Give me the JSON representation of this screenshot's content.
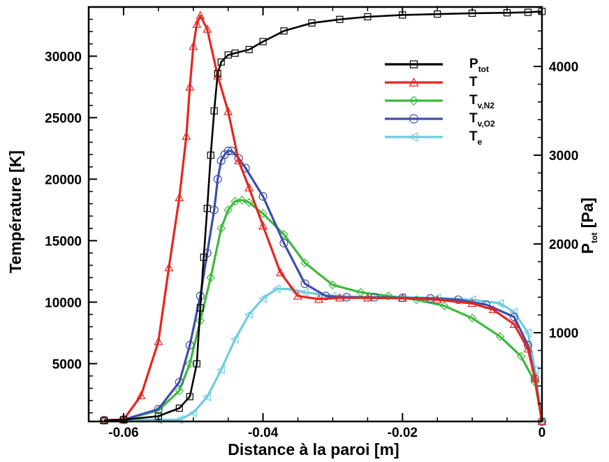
{
  "chart_data": {
    "type": "line",
    "xlabel": "Distance à la paroi [m]",
    "ylabel_left": "Température [K]",
    "ylabel_right": {
      "main": "P",
      "sub": "tot",
      "unit": " [Pa]"
    },
    "xlim": [
      -0.065,
      0.0
    ],
    "ylim_left": [
      300,
      34000
    ],
    "ylim_right": [
      0,
      4670
    ],
    "x_ticks": [
      -0.06,
      -0.04,
      -0.02,
      0
    ],
    "x_tick_labels": [
      "-0.06",
      "-0.04",
      "-0.02",
      "0"
    ],
    "y_left_ticks": [
      5000,
      10000,
      15000,
      20000,
      25000,
      30000
    ],
    "y_left_tick_labels": [
      "5000",
      "10000",
      "15000",
      "20000",
      "25000",
      "30000"
    ],
    "y_right_ticks": [
      1000,
      2000,
      3000,
      4000
    ],
    "y_right_tick_labels": [
      "1000",
      "2000",
      "3000",
      "4000"
    ],
    "grid": false,
    "legend_position": "top-right",
    "series": [
      {
        "name": "Ptot",
        "label_main": "P",
        "label_sub": "tot",
        "axis": "right",
        "color": "#000000",
        "marker": "square",
        "x": [
          -0.0628,
          -0.06,
          -0.055,
          -0.052,
          -0.0505,
          -0.0495,
          -0.049,
          -0.0485,
          -0.048,
          -0.0475,
          -0.047,
          -0.0465,
          -0.046,
          -0.045,
          -0.044,
          -0.042,
          -0.04,
          -0.037,
          -0.033,
          -0.029,
          -0.025,
          -0.02,
          -0.015,
          -0.01,
          -0.005,
          -0.002,
          0.0
        ],
        "y": [
          10,
          20,
          60,
          150,
          280,
          650,
          1280,
          1850,
          2400,
          3000,
          3500,
          3920,
          4050,
          4130,
          4150,
          4190,
          4280,
          4400,
          4490,
          4530,
          4560,
          4580,
          4590,
          4600,
          4605,
          4610,
          4620
        ]
      },
      {
        "name": "T",
        "label_main": "T",
        "label_sub": "",
        "axis": "left",
        "color": "#e8241f",
        "marker": "triangle",
        "x": [
          -0.0628,
          -0.06,
          -0.0575,
          -0.055,
          -0.0535,
          -0.052,
          -0.051,
          -0.0505,
          -0.05,
          -0.0495,
          -0.049,
          -0.048,
          -0.0465,
          -0.045,
          -0.0435,
          -0.042,
          -0.04,
          -0.0375,
          -0.035,
          -0.032,
          -0.029,
          -0.025,
          -0.02,
          -0.015,
          -0.01,
          -0.007,
          -0.004,
          -0.002,
          -0.001,
          0.0
        ],
        "y": [
          400,
          450,
          2400,
          6800,
          12800,
          18500,
          23500,
          27500,
          30800,
          32600,
          33300,
          32200,
          28400,
          25500,
          21500,
          19300,
          16200,
          12400,
          10500,
          10250,
          10350,
          10350,
          10320,
          10200,
          9900,
          9400,
          8200,
          6200,
          3800,
          300
        ]
      },
      {
        "name": "Tv,N2",
        "label_main": "T",
        "label_sub": "v,N2",
        "axis": "left",
        "color": "#3cb93c",
        "marker": "diamond",
        "x": [
          -0.0628,
          -0.06,
          -0.055,
          -0.052,
          -0.0505,
          -0.049,
          -0.0475,
          -0.046,
          -0.045,
          -0.044,
          -0.043,
          -0.042,
          -0.04,
          -0.037,
          -0.034,
          -0.03,
          -0.026,
          -0.022,
          -0.018,
          -0.014,
          -0.01,
          -0.006,
          -0.003,
          -0.001,
          0.0
        ],
        "y": [
          400,
          450,
          1200,
          2800,
          5000,
          8500,
          12000,
          16000,
          17500,
          18200,
          18300,
          18100,
          17200,
          15500,
          13200,
          11400,
          10800,
          10500,
          10200,
          9700,
          8700,
          7200,
          5600,
          3500,
          300
        ]
      },
      {
        "name": "Tv,O2",
        "label_main": "T",
        "label_sub": "v,O2",
        "axis": "left",
        "color": "#3f4ea8",
        "marker": "circle",
        "x": [
          -0.0628,
          -0.06,
          -0.055,
          -0.052,
          -0.0505,
          -0.049,
          -0.048,
          -0.047,
          -0.0465,
          -0.046,
          -0.0455,
          -0.045,
          -0.0445,
          -0.0435,
          -0.0425,
          -0.04,
          -0.037,
          -0.034,
          -0.031,
          -0.028,
          -0.024,
          -0.02,
          -0.016,
          -0.012,
          -0.008,
          -0.004,
          -0.002,
          -0.001,
          0.0
        ],
        "y": [
          400,
          450,
          1300,
          3500,
          6500,
          10500,
          14000,
          17500,
          20000,
          21500,
          22000,
          22300,
          22300,
          21700,
          20900,
          18600,
          14800,
          11500,
          10500,
          10400,
          10400,
          10350,
          10300,
          10200,
          9800,
          8800,
          6500,
          3800,
          300
        ]
      },
      {
        "name": "Te",
        "label_main": "T",
        "label_sub": "e",
        "axis": "left",
        "color": "#6fcbdf",
        "marker": "triangle-left",
        "x": [
          -0.0628,
          -0.06,
          -0.055,
          -0.052,
          -0.05,
          -0.048,
          -0.046,
          -0.044,
          -0.042,
          -0.04,
          -0.038,
          -0.036,
          -0.034,
          -0.03,
          -0.025,
          -0.02,
          -0.015,
          -0.01,
          -0.006,
          -0.004,
          -0.002,
          -0.001,
          0.0
        ],
        "y": [
          400,
          420,
          430,
          450,
          1000,
          2300,
          4500,
          7000,
          9000,
          10300,
          11100,
          11050,
          10800,
          10500,
          10400,
          10400,
          10350,
          10200,
          9900,
          9200,
          7500,
          4500,
          300
        ]
      }
    ]
  }
}
